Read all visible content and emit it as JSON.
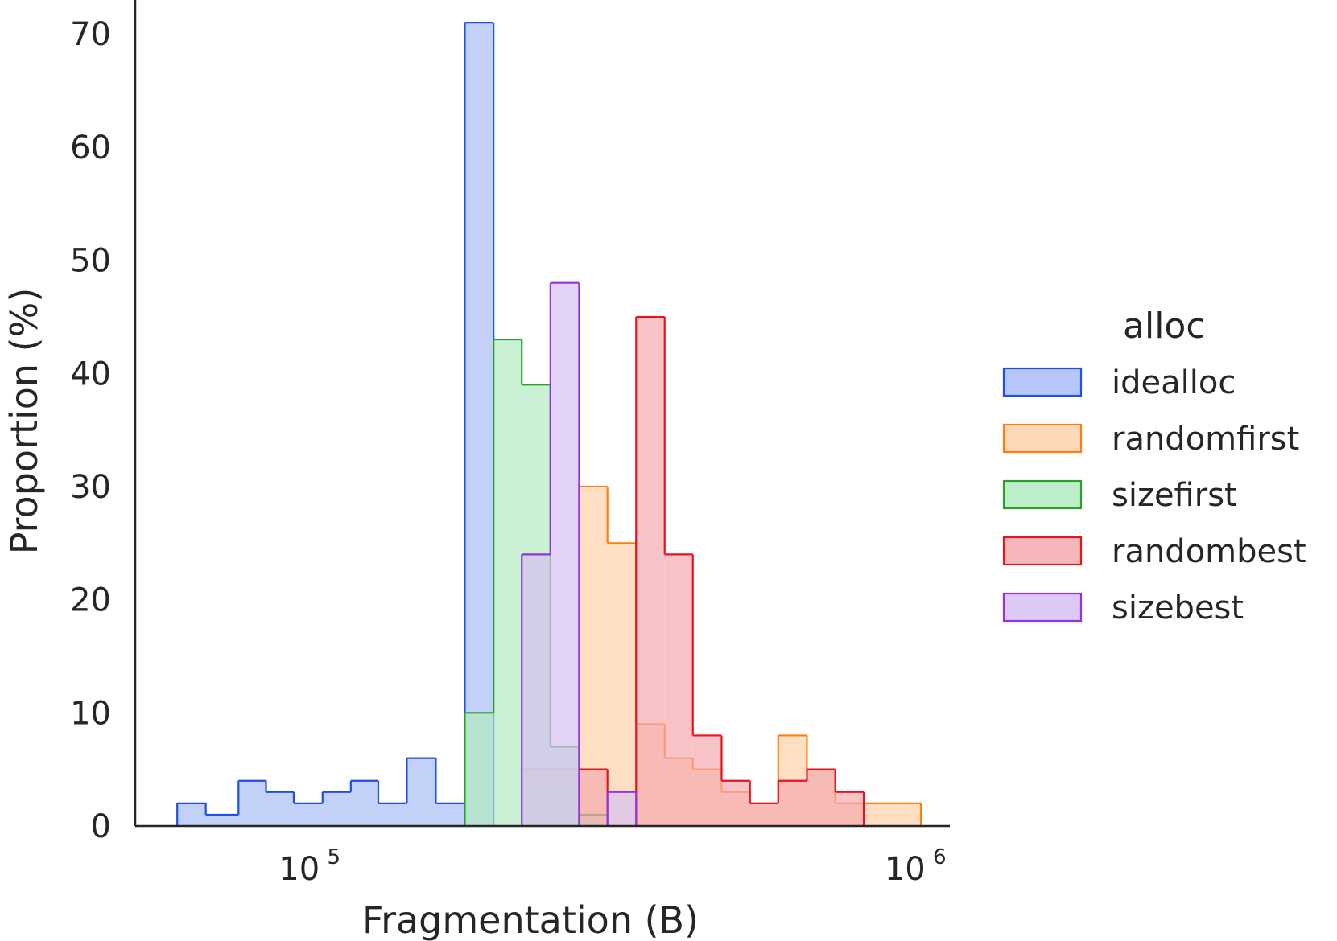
{
  "chart_data": {
    "type": "histogram",
    "xlabel": "Fragmentation (B)",
    "ylabel": "Proportion (%)",
    "xscale": "log",
    "xlim": [
      52000,
      1150000
    ],
    "ylim": [
      0,
      73
    ],
    "grid": false,
    "legend": {
      "title": "alloc",
      "placement": "right"
    },
    "x_ticks": [
      {
        "value": 100000,
        "base": "10",
        "exp": "5"
      },
      {
        "value": 1000000,
        "base": "10",
        "exp": "6"
      }
    ],
    "y_ticks": [
      0,
      10,
      20,
      30,
      40,
      50,
      60,
      70
    ],
    "bin_edges": [
      61000,
      68000,
      77000,
      85500,
      95000,
      106000,
      118000,
      131000,
      146000,
      163000,
      182000,
      203000,
      226000,
      252000,
      281000,
      313000,
      349000,
      389000,
      433000,
      483000,
      538000,
      599000,
      668000,
      744000,
      829000,
      924000,
      1030000
    ],
    "series": [
      {
        "name": "idealloc",
        "color": "#1f50e6",
        "fill": "#a9bcf5",
        "values": [
          2,
          1,
          4,
          3,
          2,
          3,
          4,
          2,
          6,
          2,
          71,
          0,
          0,
          0,
          0,
          0,
          0,
          0,
          0,
          0,
          0,
          0,
          0,
          0,
          0,
          0
        ]
      },
      {
        "name": "randomfirst",
        "color": "#ff7f0e",
        "fill": "#ffd1aa",
        "values": [
          0,
          0,
          0,
          0,
          0,
          0,
          0,
          0,
          0,
          0,
          0,
          0,
          5,
          5,
          30,
          25,
          9,
          6,
          5,
          3,
          2,
          8,
          5,
          2,
          2,
          2
        ]
      },
      {
        "name": "sizefirst",
        "color": "#2ca02c",
        "fill": "#b3ebc0",
        "values": [
          0,
          0,
          0,
          0,
          0,
          0,
          0,
          0,
          0,
          0,
          10,
          43,
          39,
          7,
          1,
          0,
          0,
          0,
          0,
          0,
          0,
          0,
          0,
          0,
          0,
          0
        ]
      },
      {
        "name": "randombest",
        "color": "#e6141e",
        "fill": "#f5aaaf",
        "values": [
          0,
          0,
          0,
          0,
          0,
          0,
          0,
          0,
          0,
          0,
          0,
          0,
          0,
          0,
          5,
          0,
          45,
          24,
          8,
          4,
          2,
          4,
          5,
          3,
          0,
          0
        ]
      },
      {
        "name": "sizebest",
        "color": "#9433d6",
        "fill": "#d6bff2",
        "values": [
          0,
          0,
          0,
          0,
          0,
          0,
          0,
          0,
          0,
          0,
          0,
          0,
          24,
          48,
          0,
          3,
          0,
          0,
          0,
          0,
          0,
          0,
          0,
          0,
          0,
          0
        ]
      }
    ]
  }
}
